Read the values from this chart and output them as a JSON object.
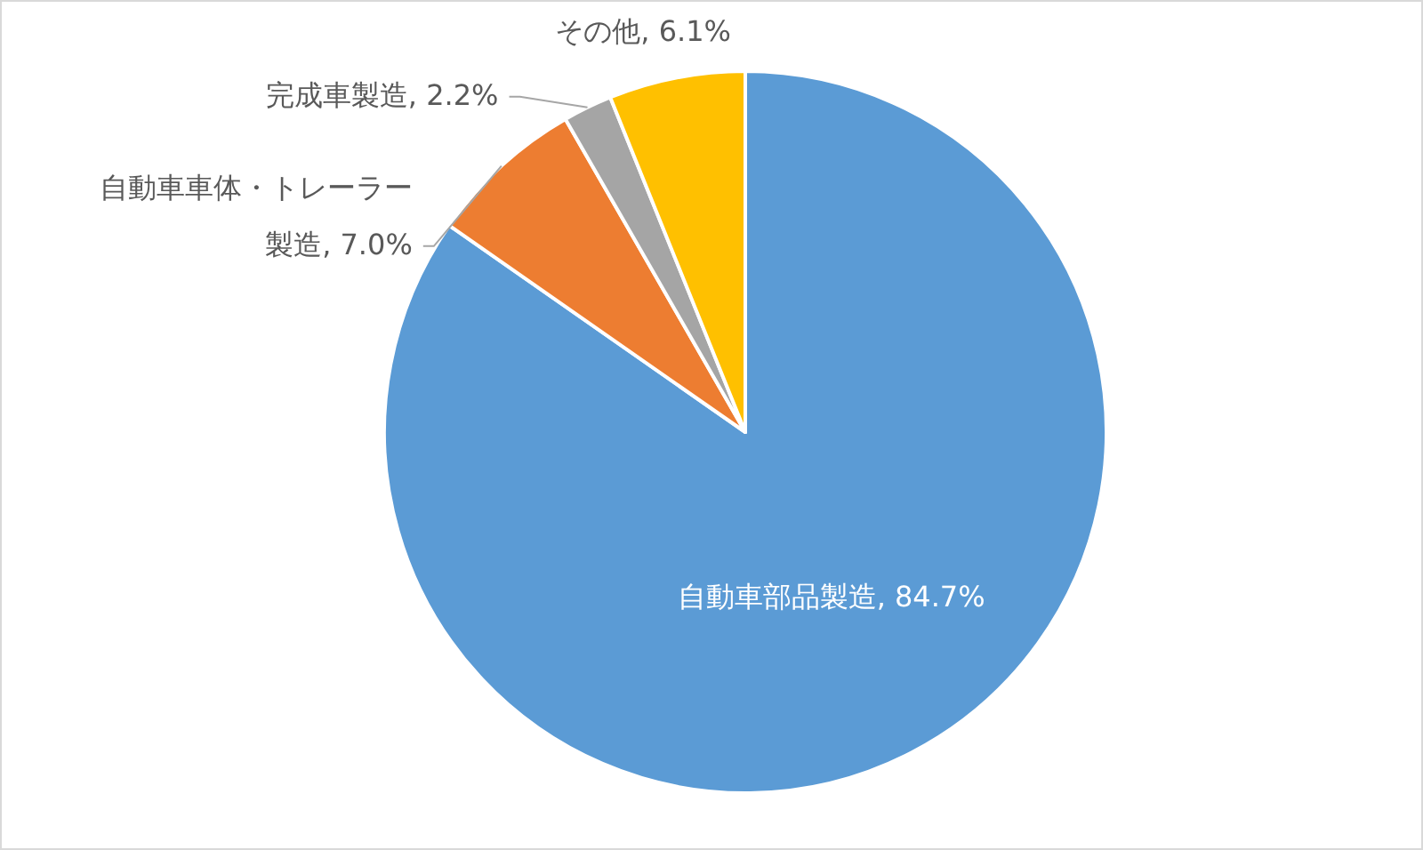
{
  "chart_data": {
    "type": "pie",
    "categories": [
      "自動車部品製造",
      "自動車車体・トレーラー製造",
      "完成車製造",
      "その他"
    ],
    "values": [
      84.7,
      7.0,
      2.2,
      6.1
    ],
    "colors": [
      "#5b9bd5",
      "#ed7d31",
      "#a5a5a5",
      "#ffc000"
    ],
    "value_labels": [
      "84.7%",
      "7.0%",
      "2.2%",
      "6.1%"
    ]
  }
}
